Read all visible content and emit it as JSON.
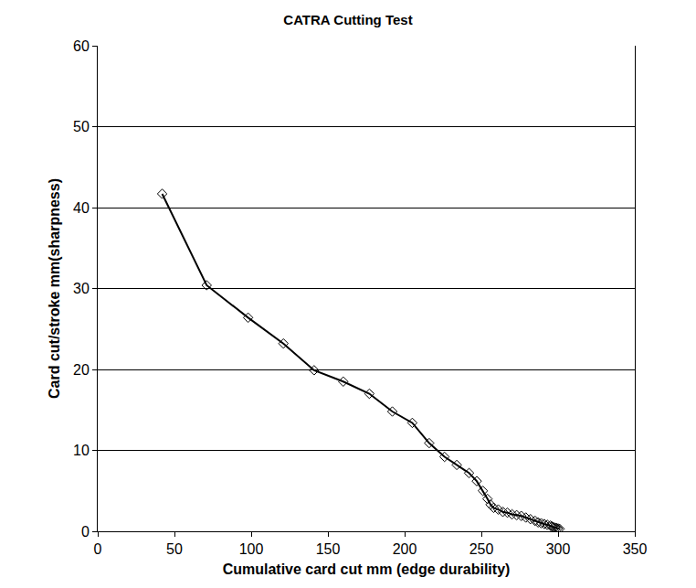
{
  "chart_data": {
    "type": "line",
    "title": "CATRA Cutting Test",
    "x_label": "Cumulative card cut mm (edge durability)",
    "y_label": "Card cut/stroke mm(sharpness)",
    "x": [
      42,
      71,
      98,
      121,
      141,
      160,
      177,
      192,
      205,
      216,
      226,
      234,
      242,
      247,
      251,
      254,
      256,
      258,
      261,
      264,
      267,
      270,
      273,
      276,
      279,
      282,
      285,
      287,
      289,
      291,
      293,
      295,
      296,
      297,
      298,
      299,
      300,
      301
    ],
    "values": [
      41.7,
      30.4,
      26.4,
      23.2,
      19.9,
      18.5,
      17.0,
      14.8,
      13.4,
      10.9,
      9.2,
      8.2,
      7.2,
      6.2,
      5.0,
      4.0,
      3.3,
      2.9,
      2.7,
      2.4,
      2.3,
      2.1,
      2.0,
      1.9,
      1.7,
      1.5,
      1.3,
      1.1,
      1.0,
      0.9,
      0.8,
      0.7,
      0.6,
      0.5,
      0.45,
      0.4,
      0.35,
      0.3
    ],
    "color": "#000000",
    "marker": "diamond-open",
    "line_style": "solid",
    "xlim": [
      0,
      350
    ],
    "xticks": [
      0,
      50,
      100,
      150,
      200,
      250,
      300,
      350
    ],
    "ylim": [
      0,
      60
    ],
    "yticks": [
      0,
      10,
      20,
      30,
      40,
      50,
      60
    ],
    "grid": true
  }
}
